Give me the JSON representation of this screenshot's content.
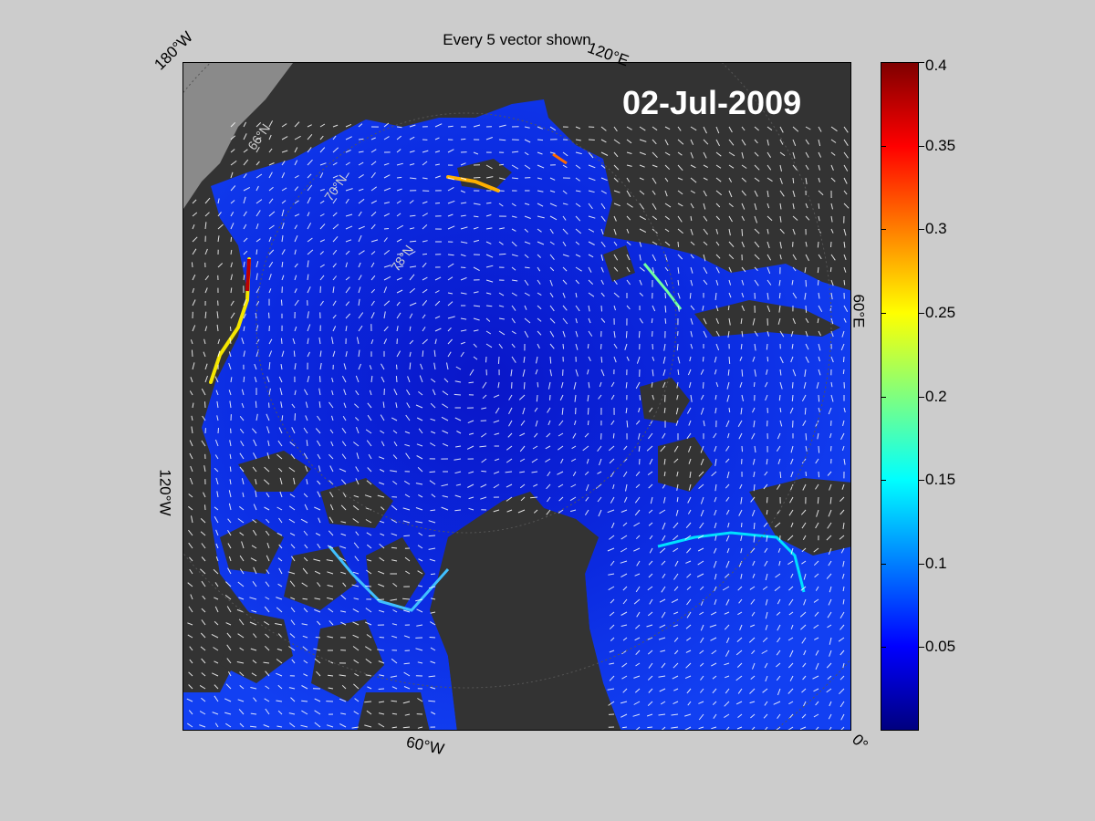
{
  "figure": {
    "title": "Every 5 vector shown",
    "date": "02-Jul-2009"
  },
  "longitude_labels": [
    {
      "text": "180°W",
      "pos": "top-left"
    },
    {
      "text": "120°E",
      "pos": "top"
    },
    {
      "text": "60°E",
      "pos": "right"
    },
    {
      "text": "0°",
      "pos": "bottom-right"
    },
    {
      "text": "60°W",
      "pos": "bottom"
    },
    {
      "text": "120°W",
      "pos": "left"
    }
  ],
  "latitude_labels": [
    "66°N",
    "70°N",
    "78°N"
  ],
  "colorbar": {
    "min": 0,
    "max": 0.4,
    "ticks": [
      "0.05",
      "0.1",
      "0.15",
      "0.2",
      "0.25",
      "0.3",
      "0.35",
      "0.4"
    ],
    "colormap": "jet"
  },
  "colors": {
    "background": "#cccccc",
    "land": "#333333",
    "ocean_low": "#0a1fd6",
    "ocean_fast": "#ffdd00",
    "vectors": "#ffffff"
  }
}
